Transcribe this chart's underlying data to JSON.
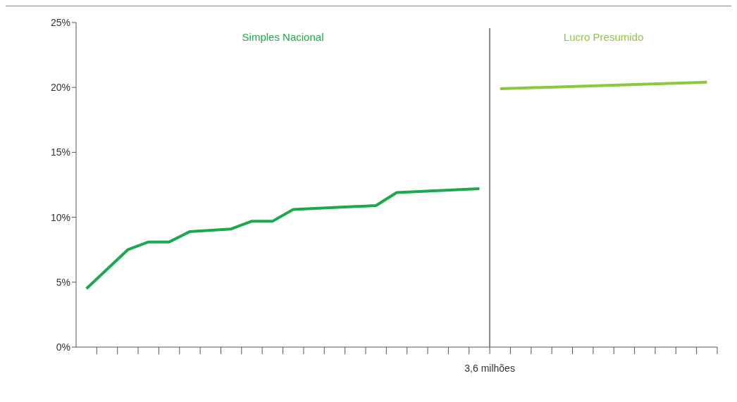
{
  "chart_data": {
    "type": "line",
    "categories": [
      null,
      null,
      null,
      null,
      null,
      null,
      null,
      null,
      null,
      null,
      null,
      null,
      null,
      null,
      null,
      null,
      null,
      null,
      null,
      null,
      null,
      null,
      null,
      null,
      null,
      null,
      null,
      null,
      null,
      null,
      null
    ],
    "ylim": [
      0,
      25
    ],
    "yticks": [
      {
        "value": 0,
        "label": "0%"
      },
      {
        "value": 5,
        "label": "5%"
      },
      {
        "value": 10,
        "label": "10%"
      },
      {
        "value": 15,
        "label": "15%"
      },
      {
        "value": 20,
        "label": "20%"
      },
      {
        "value": 25,
        "label": "25%"
      }
    ],
    "series": [
      {
        "name": "Simples Nacional",
        "color": "#1aaa4a",
        "values": [
          4.5,
          null,
          7.5,
          8.1,
          8.1,
          8.9,
          null,
          9.1,
          9.7,
          9.7,
          10.6,
          null,
          null,
          null,
          10.9,
          11.9,
          null,
          null,
          null,
          12.2,
          null,
          null,
          null,
          null,
          null,
          null,
          null,
          null,
          null,
          null,
          null
        ]
      },
      {
        "name": "Lucro Presumido",
        "color": "#8dc63f",
        "values": [
          null,
          null,
          null,
          null,
          null,
          null,
          null,
          null,
          null,
          null,
          null,
          null,
          null,
          null,
          null,
          null,
          null,
          null,
          null,
          null,
          19.9,
          null,
          null,
          null,
          null,
          null,
          null,
          null,
          null,
          null,
          20.4
        ]
      }
    ],
    "annotations": [
      "3,6 milhões"
    ],
    "grid": false,
    "marker": "none",
    "line_style": "solid"
  }
}
